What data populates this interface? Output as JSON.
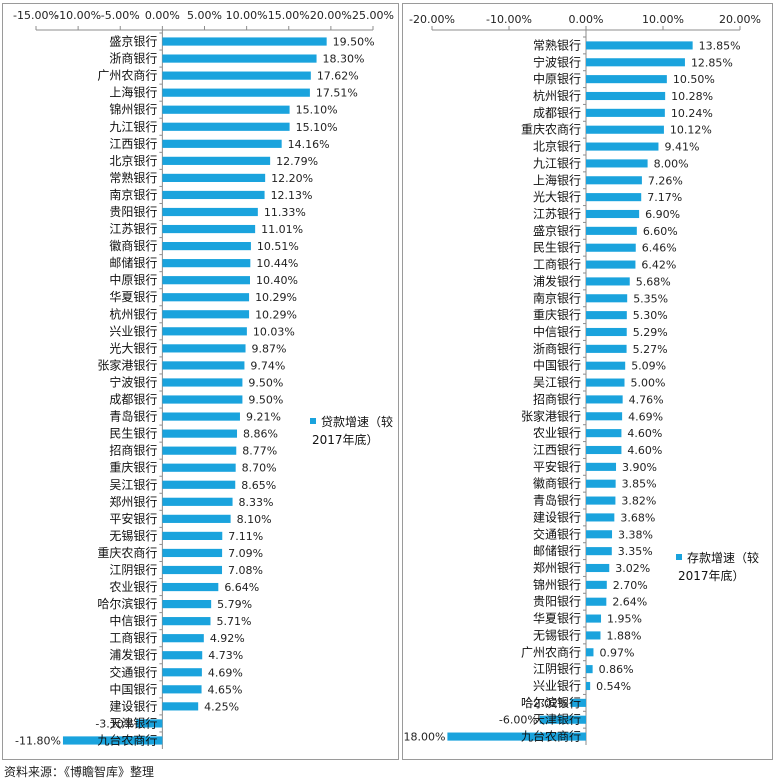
{
  "source": "资料来源：《博瞻智库》整理",
  "chart_data": [
    {
      "type": "bar",
      "orientation": "horizontal",
      "legend": {
        "label_lines": [
          "贷款增速（较",
          "2017年底）"
        ],
        "position": "right"
      },
      "xlim": [
        -0.15,
        0.25
      ],
      "ticks": [
        -0.15,
        -0.1,
        -0.05,
        0,
        0.05,
        0.1,
        0.15,
        0.2,
        0.25
      ],
      "tick_labels": [
        "-15.00%",
        "-10.00%",
        "-5.00%",
        "0.00%",
        "5.00%",
        "10.00%",
        "15.00%",
        "20.00%",
        "25.00%"
      ],
      "categories": [
        "盛京银行",
        "浙商银行",
        "广州农商行",
        "上海银行",
        "锦州银行",
        "九江银行",
        "江西银行",
        "北京银行",
        "常熟银行",
        "南京银行",
        "贵阳银行",
        "江苏银行",
        "徽商银行",
        "邮储银行",
        "中原银行",
        "华夏银行",
        "杭州银行",
        "兴业银行",
        "光大银行",
        "张家港银行",
        "宁波银行",
        "成都银行",
        "青岛银行",
        "民生银行",
        "招商银行",
        "重庆银行",
        "吴江银行",
        "郑州银行",
        "平安银行",
        "无锡银行",
        "重庆农商行",
        "江阴银行",
        "农业银行",
        "哈尔滨银行",
        "中信银行",
        "工商银行",
        "浦发银行",
        "交通银行",
        "中国银行",
        "建设银行",
        "天津银行",
        "九台农商行"
      ],
      "values": [
        0.195,
        0.183,
        0.1762,
        0.1751,
        0.151,
        0.151,
        0.1416,
        0.1279,
        0.122,
        0.1213,
        0.1133,
        0.1101,
        0.1051,
        0.1044,
        0.104,
        0.1029,
        0.1029,
        0.1003,
        0.0987,
        0.0974,
        0.095,
        0.095,
        0.0921,
        0.0886,
        0.0877,
        0.087,
        0.0865,
        0.0833,
        0.081,
        0.0711,
        0.0709,
        0.0708,
        0.0664,
        0.0579,
        0.0571,
        0.0492,
        0.0473,
        0.0469,
        0.0465,
        0.0425,
        -0.031,
        -0.118
      ],
      "value_labels": [
        "19.50%",
        "18.30%",
        "17.62%",
        "17.51%",
        "15.10%",
        "15.10%",
        "14.16%",
        "12.79%",
        "12.20%",
        "12.13%",
        "11.33%",
        "11.01%",
        "10.51%",
        "10.44%",
        "10.40%",
        "10.29%",
        "10.29%",
        "10.03%",
        "9.87%",
        "9.74%",
        "9.50%",
        "9.50%",
        "9.21%",
        "8.86%",
        "8.77%",
        "8.70%",
        "8.65%",
        "8.33%",
        "8.10%",
        "7.11%",
        "7.09%",
        "7.08%",
        "6.64%",
        "5.79%",
        "5.71%",
        "4.92%",
        "4.73%",
        "4.69%",
        "4.65%",
        "4.25%",
        "-3.10%",
        "-11.80%"
      ],
      "color": "#1aa3dd"
    },
    {
      "type": "bar",
      "orientation": "horizontal",
      "legend": {
        "label_lines": [
          "存款增速（较",
          "2017年底）"
        ],
        "position": "right"
      },
      "xlim": [
        -0.2,
        0.2
      ],
      "ticks": [
        -0.2,
        -0.1,
        0,
        0.1,
        0.2
      ],
      "tick_labels": [
        "-20.00%",
        "-10.00%",
        "0.00%",
        "10.00%",
        "20.00%"
      ],
      "categories": [
        "常熟银行",
        "宁波银行",
        "中原银行",
        "杭州银行",
        "成都银行",
        "重庆农商行",
        "北京银行",
        "九江银行",
        "上海银行",
        "光大银行",
        "江苏银行",
        "盛京银行",
        "民生银行",
        "工商银行",
        "浦发银行",
        "南京银行",
        "重庆银行",
        "中信银行",
        "浙商银行",
        "中国银行",
        "吴江银行",
        "招商银行",
        "张家港银行",
        "农业银行",
        "江西银行",
        "平安银行",
        "徽商银行",
        "青岛银行",
        "建设银行",
        "交通银行",
        "邮储银行",
        "郑州银行",
        "锦州银行",
        "贵阳银行",
        "华夏银行",
        "无锡银行",
        "广州农商行",
        "江阴银行",
        "兴业银行",
        "哈尔滨银行",
        "天津银行",
        "九台农商行"
      ],
      "values": [
        0.1385,
        0.1285,
        0.105,
        0.1028,
        0.1024,
        0.1012,
        0.0941,
        0.08,
        0.0726,
        0.0717,
        0.069,
        0.066,
        0.0646,
        0.0642,
        0.0568,
        0.0535,
        0.053,
        0.0529,
        0.0527,
        0.0509,
        0.05,
        0.0476,
        0.0469,
        0.046,
        0.046,
        0.039,
        0.0385,
        0.0382,
        0.0368,
        0.0338,
        0.0335,
        0.0302,
        0.027,
        0.0264,
        0.0195,
        0.0188,
        0.0097,
        0.0086,
        0.0054,
        -0.0202,
        -0.06,
        -0.18
      ],
      "value_labels": [
        "13.85%",
        "12.85%",
        "10.50%",
        "10.28%",
        "10.24%",
        "10.12%",
        "9.41%",
        "8.00%",
        "7.26%",
        "7.17%",
        "6.90%",
        "6.60%",
        "6.46%",
        "6.42%",
        "5.68%",
        "5.35%",
        "5.30%",
        "5.29%",
        "5.27%",
        "5.09%",
        "5.00%",
        "4.76%",
        "4.69%",
        "4.60%",
        "4.60%",
        "3.90%",
        "3.85%",
        "3.82%",
        "3.68%",
        "3.38%",
        "3.35%",
        "3.02%",
        "2.70%",
        "2.64%",
        "1.95%",
        "1.88%",
        "0.97%",
        "0.86%",
        "0.54%",
        "-2.02%",
        "-6.00%",
        "-18.00%"
      ],
      "color": "#1aa3dd"
    }
  ]
}
